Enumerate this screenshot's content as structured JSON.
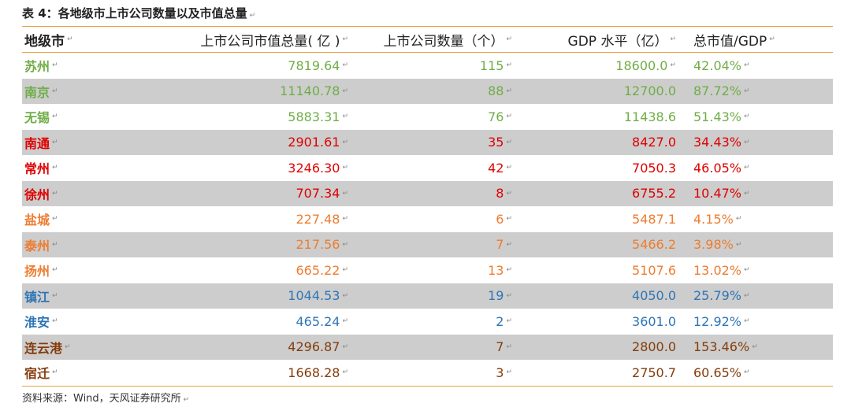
{
  "caption": "表 4：各地级市上市公司数量以及市值总量",
  "headers": {
    "city": "地级市",
    "market_value": "上市公司市值总量( 亿 )",
    "count": "上市公司数量（个）",
    "gdp": "GDP 水平（亿）",
    "ratio": "总市值/GDP"
  },
  "rows": [
    {
      "city": "苏州",
      "market_value": "7819.64",
      "count": "115",
      "gdp": "18600.0",
      "ratio": "42.04%",
      "color": "#70ad47"
    },
    {
      "city": "南京",
      "market_value": "11140.78",
      "count": "88",
      "gdp": "12700.0",
      "ratio": "87.72%",
      "color": "#70ad47"
    },
    {
      "city": "无锡",
      "market_value": "5883.31",
      "count": "76",
      "gdp": "11438.6",
      "ratio": "51.43%",
      "color": "#70ad47"
    },
    {
      "city": "南通",
      "market_value": "2901.61",
      "count": "35",
      "gdp": "8427.0",
      "ratio": "34.43%",
      "color": "#e00000"
    },
    {
      "city": "常州",
      "market_value": "3246.30",
      "count": "42",
      "gdp": "7050.3",
      "ratio": "46.05%",
      "color": "#e00000"
    },
    {
      "city": "徐州",
      "market_value": "707.34",
      "count": "8",
      "gdp": "6755.2",
      "ratio": "10.47%",
      "color": "#e00000"
    },
    {
      "city": "盐城",
      "market_value": "227.48",
      "count": "6",
      "gdp": "5487.1",
      "ratio": "4.15%",
      "color": "#ed7d31"
    },
    {
      "city": "泰州",
      "market_value": "217.56",
      "count": "7",
      "gdp": "5466.2",
      "ratio": "3.98%",
      "color": "#ed7d31"
    },
    {
      "city": "扬州",
      "market_value": "665.22",
      "count": "13",
      "gdp": "5107.6",
      "ratio": "13.02%",
      "color": "#ed7d31"
    },
    {
      "city": "镇江",
      "market_value": "1044.53",
      "count": "19",
      "gdp": "4050.0",
      "ratio": "25.79%",
      "color": "#2e75b6"
    },
    {
      "city": "淮安",
      "market_value": "465.24",
      "count": "2",
      "gdp": "3601.0",
      "ratio": "12.92%",
      "color": "#2e75b6"
    },
    {
      "city": "连云港",
      "market_value": "4296.87",
      "count": "7",
      "gdp": "2800.0",
      "ratio": "153.46%",
      "color": "#843c0c"
    },
    {
      "city": "宿迁",
      "market_value": "1668.28",
      "count": "3",
      "gdp": "2750.7",
      "ratio": "60.65%",
      "color": "#843c0c"
    }
  ],
  "source": "资料来源：Wind，天风证券研究所"
}
